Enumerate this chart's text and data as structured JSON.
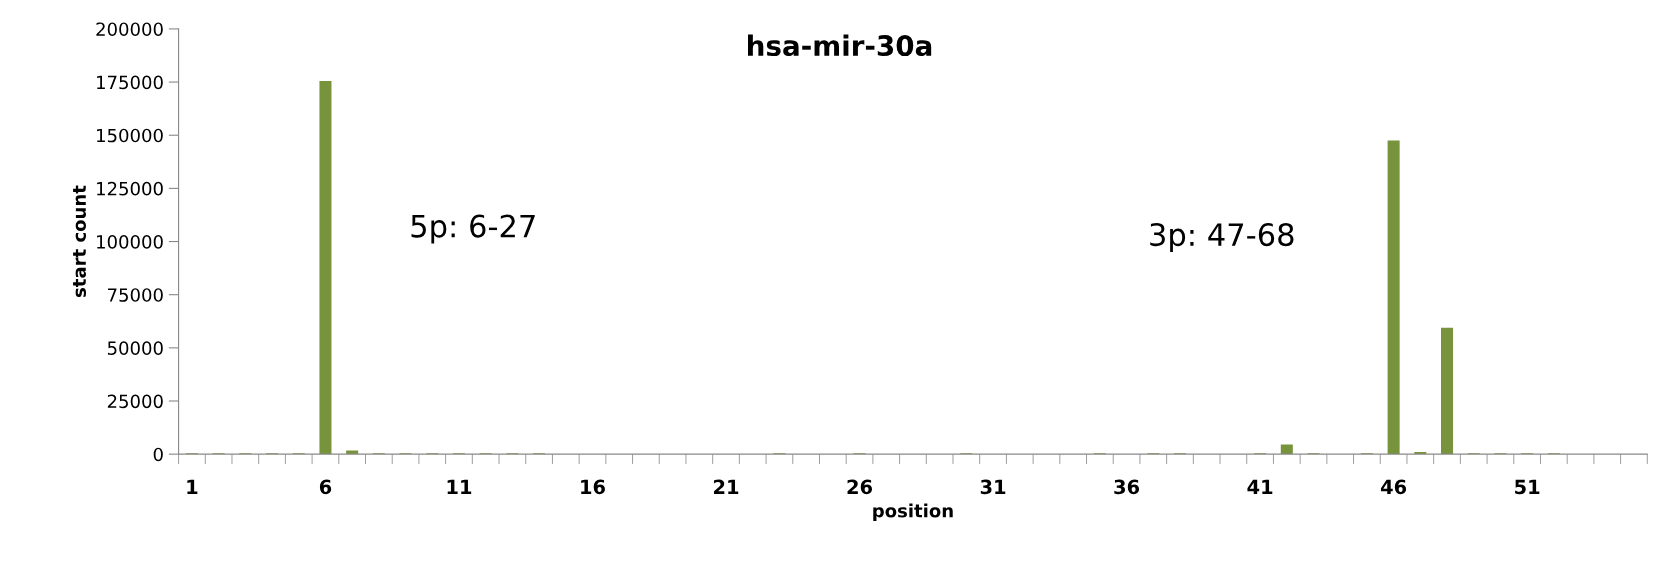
{
  "chart_data": {
    "type": "bar",
    "title": "hsa-mir-30a",
    "xlabel": "position",
    "ylabel": "start count",
    "categories": [
      "1",
      null,
      null,
      null,
      null,
      "6",
      null,
      null,
      null,
      null,
      "11",
      null,
      null,
      null,
      null,
      "16",
      null,
      null,
      null,
      null,
      "21",
      null,
      null,
      null,
      null,
      "26",
      null,
      null,
      null,
      null,
      "31",
      null,
      null,
      null,
      null,
      "36",
      null,
      null,
      null,
      null,
      "41",
      null,
      null,
      null,
      null,
      "46",
      null,
      null,
      null,
      null,
      "51",
      null,
      null,
      null,
      null
    ],
    "values": [
      400,
      400,
      400,
      400,
      400,
      175500,
      1700,
      400,
      400,
      400,
      400,
      400,
      400,
      400,
      0,
      0,
      0,
      0,
      0,
      0,
      0,
      0,
      400,
      0,
      0,
      400,
      0,
      0,
      0,
      400,
      0,
      0,
      0,
      0,
      400,
      0,
      400,
      400,
      0,
      0,
      400,
      4500,
      400,
      0,
      400,
      147500,
      1000,
      59500,
      400,
      400,
      400,
      400,
      0,
      0,
      0
    ],
    "color": "#77933c",
    "ylim": [
      0,
      200000
    ],
    "yticks": [
      0,
      25000,
      50000,
      75000,
      100000,
      125000,
      150000,
      175000,
      200000
    ],
    "annotations": [
      "5p: 6-27",
      "3p: 47-68"
    ],
    "grid": false
  }
}
